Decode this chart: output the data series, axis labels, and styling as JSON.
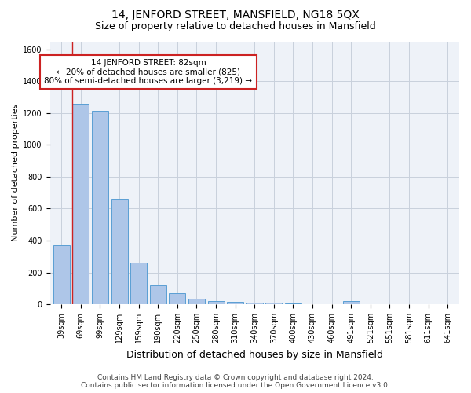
{
  "title": "14, JENFORD STREET, MANSFIELD, NG18 5QX",
  "subtitle": "Size of property relative to detached houses in Mansfield",
  "xlabel": "Distribution of detached houses by size in Mansfield",
  "ylabel": "Number of detached properties",
  "footnote1": "Contains HM Land Registry data © Crown copyright and database right 2024.",
  "footnote2": "Contains public sector information licensed under the Open Government Licence v3.0.",
  "bin_labels": [
    "39sqm",
    "69sqm",
    "99sqm",
    "129sqm",
    "159sqm",
    "190sqm",
    "220sqm",
    "250sqm",
    "280sqm",
    "310sqm",
    "340sqm",
    "370sqm",
    "400sqm",
    "430sqm",
    "460sqm",
    "491sqm",
    "521sqm",
    "551sqm",
    "581sqm",
    "611sqm",
    "641sqm"
  ],
  "bar_values": [
    370,
    1260,
    1215,
    660,
    262,
    120,
    68,
    35,
    22,
    14,
    10,
    8,
    5,
    0,
    0,
    18,
    0,
    0,
    0,
    0,
    0
  ],
  "bar_color": "#aec6e8",
  "bar_edge_color": "#5a9fd4",
  "property_sqm": 82,
  "annotation_text": "14 JENFORD STREET: 82sqm\n← 20% of detached houses are smaller (825)\n80% of semi-detached houses are larger (3,219) →",
  "ylim": [
    0,
    1650
  ],
  "yticks": [
    0,
    200,
    400,
    600,
    800,
    1000,
    1200,
    1400,
    1600
  ],
  "bg_color": "#eef2f8",
  "grid_color": "#c8d0dc",
  "title_fontsize": 10,
  "subtitle_fontsize": 9,
  "xlabel_fontsize": 9,
  "ylabel_fontsize": 8,
  "tick_fontsize": 7,
  "annotation_fontsize": 7.5,
  "footnote_fontsize": 6.5
}
